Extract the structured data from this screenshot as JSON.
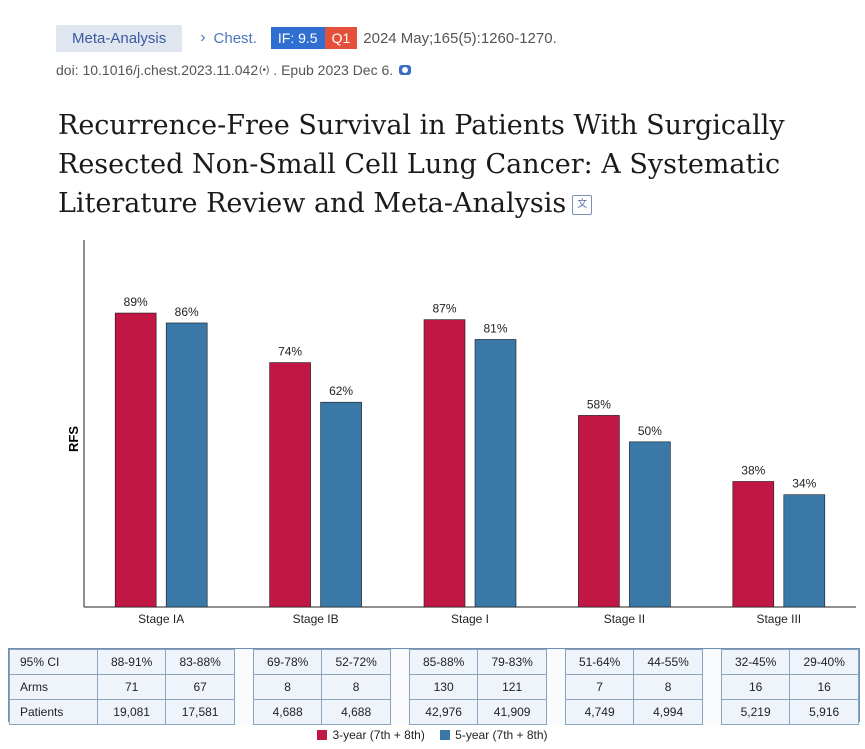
{
  "header": {
    "tag": "Meta-Analysis",
    "journal": "Chest.",
    "impact_factor": "IF: 9.5",
    "quartile": "Q1",
    "pub_date": "2024 May;165(5):1260-1270.",
    "doi": "doi: 10.1016/j.chest.2023.11.042",
    "epub": ". Epub 2023 Dec 6."
  },
  "article_title": "Recurrence-Free Survival in Patients With Surgically Resected Non-Small Cell Lung Cancer: A Systematic Literature Review and Meta-Analysis",
  "colors": {
    "series1": "#c01744",
    "series2": "#3a78a8"
  },
  "chart_data": {
    "type": "bar",
    "categories": [
      "Stage IA",
      "Stage IB",
      "Stage I",
      "Stage II",
      "Stage III"
    ],
    "series": [
      {
        "name": "3-year (7th + 8th)",
        "values": [
          89,
          74,
          87,
          58,
          38
        ],
        "labels": [
          "89%",
          "74%",
          "87%",
          "58%",
          "38%"
        ]
      },
      {
        "name": "5-year (7th + 8th)",
        "values": [
          86,
          62,
          81,
          50,
          34
        ],
        "labels": [
          "86%",
          "62%",
          "81%",
          "50%",
          "34%"
        ]
      }
    ],
    "ylabel": "RFS",
    "xlabel": "",
    "ylim": [
      0,
      100
    ],
    "grid": false,
    "legend": "bottom"
  },
  "table": {
    "rows": [
      {
        "label": "95% CI",
        "cells": [
          "88-91%",
          "83-88%",
          "69-78%",
          "52-72%",
          "85-88%",
          "79-83%",
          "51-64%",
          "44-55%",
          "32-45%",
          "29-40%"
        ]
      },
      {
        "label": "Arms",
        "cells": [
          "71",
          "67",
          "8",
          "8",
          "130",
          "121",
          "7",
          "8",
          "16",
          "16"
        ]
      },
      {
        "label": "Patients",
        "cells": [
          "19,081",
          "17,581",
          "4,688",
          "4,688",
          "42,976",
          "41,909",
          "4,749",
          "4,994",
          "5,219",
          "5,916"
        ]
      }
    ]
  }
}
